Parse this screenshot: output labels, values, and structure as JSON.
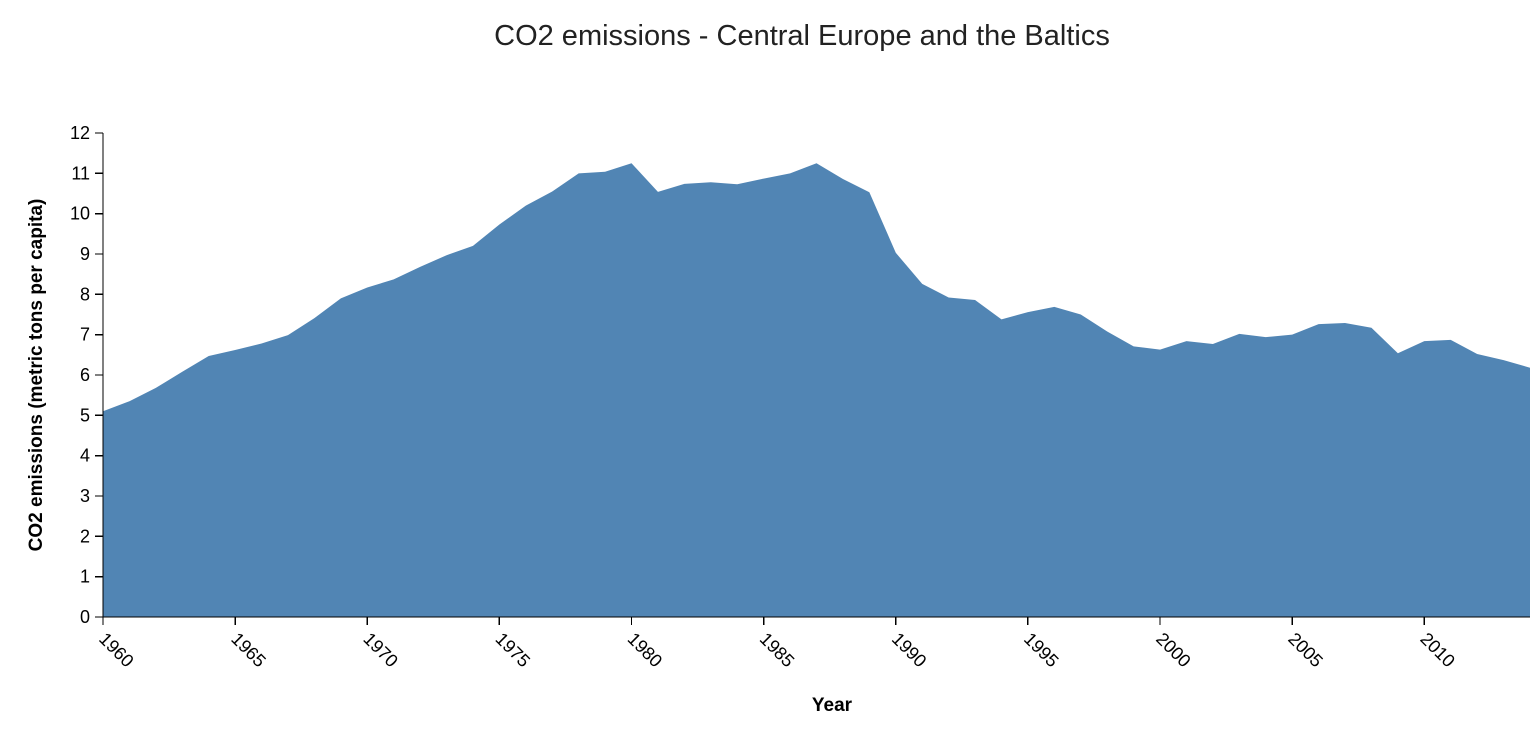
{
  "chart_data": {
    "type": "area",
    "title": "CO2 emissions - Central Europe and the Baltics",
    "xlabel": "Year",
    "ylabel": "CO2 emissions (metric tons per capita)",
    "xlim": [
      1960,
      2014
    ],
    "ylim": [
      0,
      12
    ],
    "x_ticks": [
      "1960",
      "1965",
      "1970",
      "1975",
      "1980",
      "1985",
      "1990",
      "1995",
      "2000",
      "2005",
      "2010"
    ],
    "y_ticks": [
      "0",
      "1",
      "2",
      "3",
      "4",
      "5",
      "6",
      "7",
      "8",
      "9",
      "10",
      "11",
      "12"
    ],
    "grid": false,
    "legend": "none",
    "fill_color": "#5185b4",
    "x": [
      1960,
      1961,
      1962,
      1963,
      1964,
      1965,
      1966,
      1967,
      1968,
      1969,
      1970,
      1971,
      1972,
      1973,
      1974,
      1975,
      1976,
      1977,
      1978,
      1979,
      1980,
      1981,
      1982,
      1983,
      1984,
      1985,
      1986,
      1987,
      1988,
      1989,
      1990,
      1991,
      1992,
      1993,
      1994,
      1995,
      1996,
      1997,
      1998,
      1999,
      2000,
      2001,
      2002,
      2003,
      2004,
      2005,
      2006,
      2007,
      2008,
      2009,
      2010,
      2011,
      2012,
      2013,
      2014
    ],
    "values": [
      5.1,
      5.35,
      5.68,
      6.08,
      6.47,
      6.62,
      6.78,
      6.99,
      7.41,
      7.9,
      8.17,
      8.37,
      8.68,
      8.97,
      9.2,
      9.73,
      10.2,
      10.55,
      11.0,
      11.04,
      11.25,
      10.54,
      10.74,
      10.78,
      10.73,
      10.87,
      11.0,
      11.25,
      10.86,
      10.53,
      9.03,
      8.26,
      7.92,
      7.86,
      7.38,
      7.56,
      7.69,
      7.5,
      7.08,
      6.71,
      6.63,
      6.84,
      6.77,
      7.02,
      6.94,
      7.0,
      7.26,
      7.29,
      7.17,
      6.54,
      6.84,
      6.87,
      6.52,
      6.37,
      6.18
    ]
  }
}
